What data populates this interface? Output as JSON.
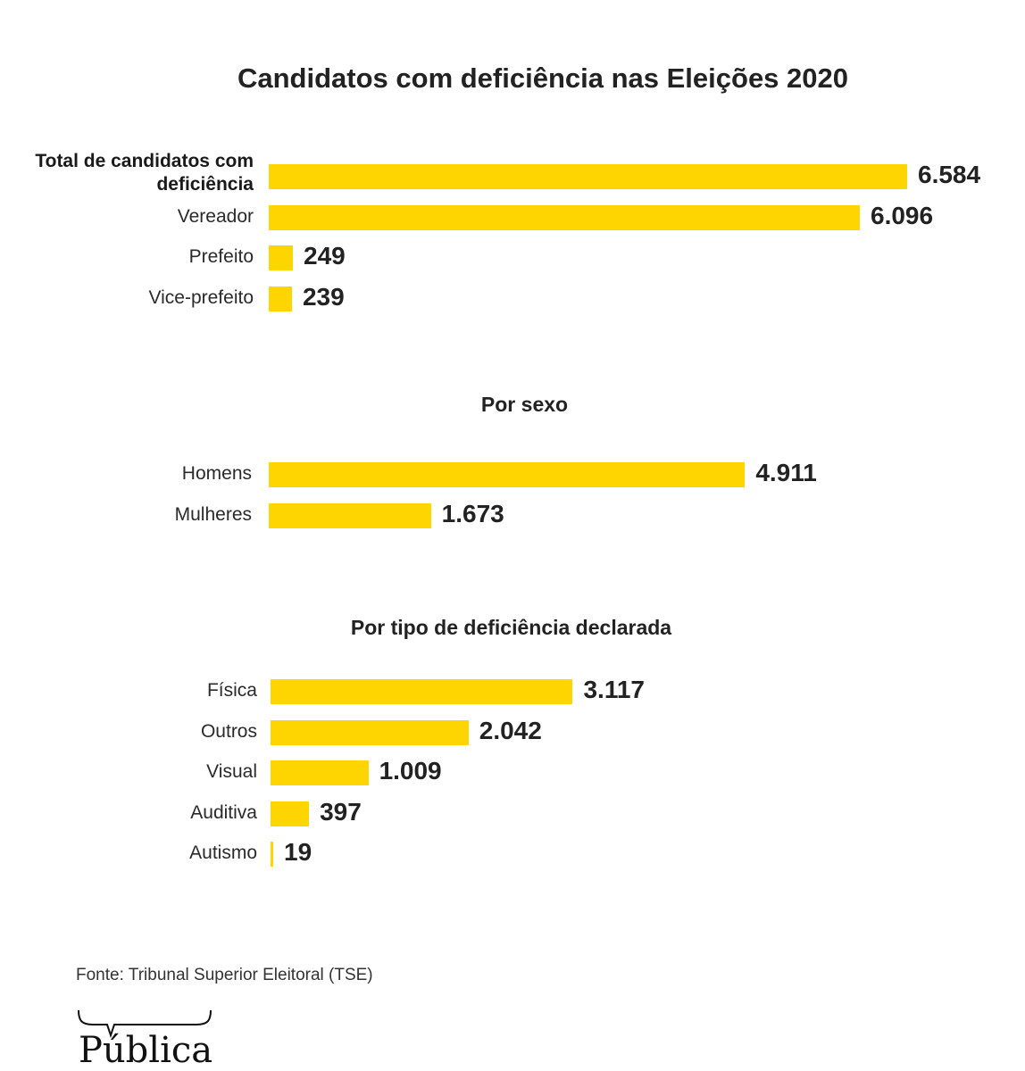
{
  "chart_data": [
    {
      "type": "bar",
      "orientation": "horizontal",
      "title": "Candidatos com deficiência nas Eleições 2020",
      "categories": [
        "Total de candidatos com deficiência",
        "Vereador",
        "Prefeito",
        "Vice-prefeito"
      ],
      "values": [
        6584,
        6096,
        249,
        239
      ],
      "value_labels": [
        "6.584",
        "6.096",
        "249",
        "239"
      ],
      "bold_categories": [
        "Total de candidatos com deficiência"
      ],
      "xlim": [
        0,
        6584
      ],
      "grid": false,
      "color": "#FFD500"
    },
    {
      "type": "bar",
      "orientation": "horizontal",
      "title": "Por sexo",
      "categories": [
        "Homens",
        "Mulheres"
      ],
      "values": [
        4911,
        1673
      ],
      "value_labels": [
        "4.911",
        "1.673"
      ],
      "xlim": [
        0,
        6584
      ],
      "grid": false,
      "color": "#FFD500"
    },
    {
      "type": "bar",
      "orientation": "horizontal",
      "title": "Por tipo de deficiência declarada",
      "categories": [
        "Física",
        "Outros",
        "Visual",
        "Auditiva",
        "Autismo"
      ],
      "values": [
        3117,
        2042,
        1009,
        397,
        19
      ],
      "value_labels": [
        "3.117",
        "2.042",
        "1.009",
        "397",
        "19"
      ],
      "xlim": [
        0,
        6584
      ],
      "grid": false,
      "color": "#FFD500"
    }
  ],
  "header": {
    "title": "Candidatos com deficiência nas Eleições 2020"
  },
  "footer": {
    "source": "Fonte: Tribunal Superior Eleitoral (TSE)",
    "logo": "Pública"
  }
}
